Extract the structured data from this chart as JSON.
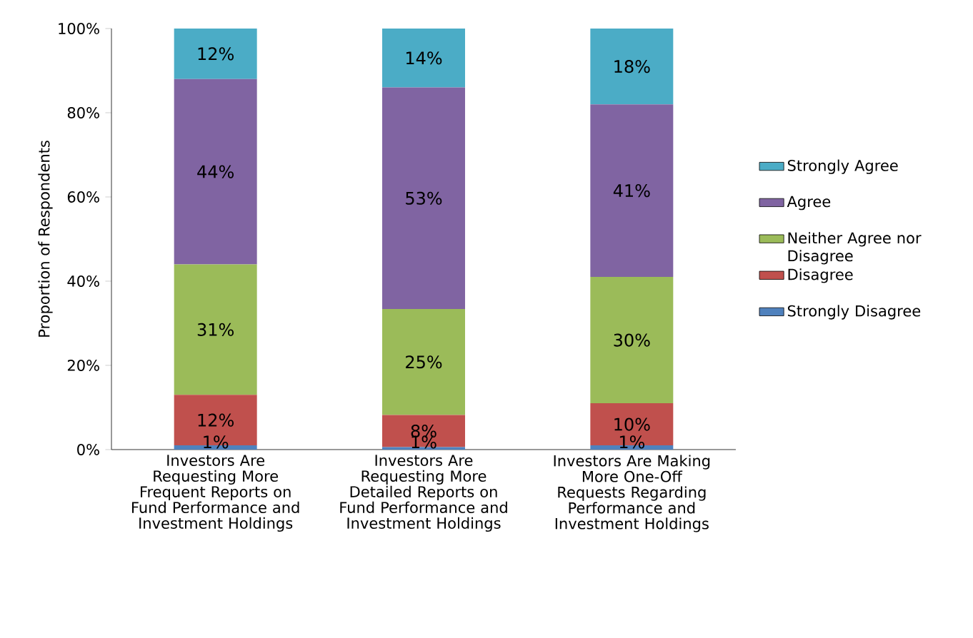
{
  "chart_data": {
    "type": "bar",
    "stacked": true,
    "ylabel": "Proportion of Respondents",
    "categories": [
      "Investors Are Requesting More Frequent Reports on Fund Performance and Investment Holdings",
      "Investors Are Requesting More Detailed Reports on Fund Performance and Investment Holdings",
      "Investors Are Making More One-Off Requests Regarding Performance and Investment Holdings"
    ],
    "series": [
      {
        "name": "Strongly Disagree",
        "color": "#4f81bd",
        "values": [
          1,
          0.6,
          1
        ],
        "value_labels": [
          "1%",
          "1%",
          "1%"
        ]
      },
      {
        "name": "Disagree",
        "color": "#c0504d",
        "values": [
          12,
          7.6,
          10
        ],
        "value_labels": [
          "12%",
          "8%",
          "10%"
        ]
      },
      {
        "name": "Neither Agree nor Disagree",
        "color": "#9bbb59",
        "values": [
          31,
          25.2,
          30
        ],
        "value_labels": [
          "31%",
          "25%",
          "30%"
        ]
      },
      {
        "name": "Agree",
        "color": "#8064a2",
        "values": [
          44,
          52.6,
          41
        ],
        "value_labels": [
          "44%",
          "53%",
          "41%"
        ]
      },
      {
        "name": "Strongly Agree",
        "color": "#4bacc6",
        "values": [
          12,
          14.0,
          18
        ],
        "value_labels": [
          "12%",
          "14%",
          "18%"
        ]
      }
    ],
    "ylim": [
      0,
      100
    ],
    "yticks": [
      {
        "value": 0,
        "label": "0%"
      },
      {
        "value": 20,
        "label": "20%"
      },
      {
        "value": 40,
        "label": "40%"
      },
      {
        "value": 60,
        "label": "60%"
      },
      {
        "value": 80,
        "label": "80%"
      },
      {
        "value": 100,
        "label": "100%"
      }
    ],
    "legend": "right"
  }
}
